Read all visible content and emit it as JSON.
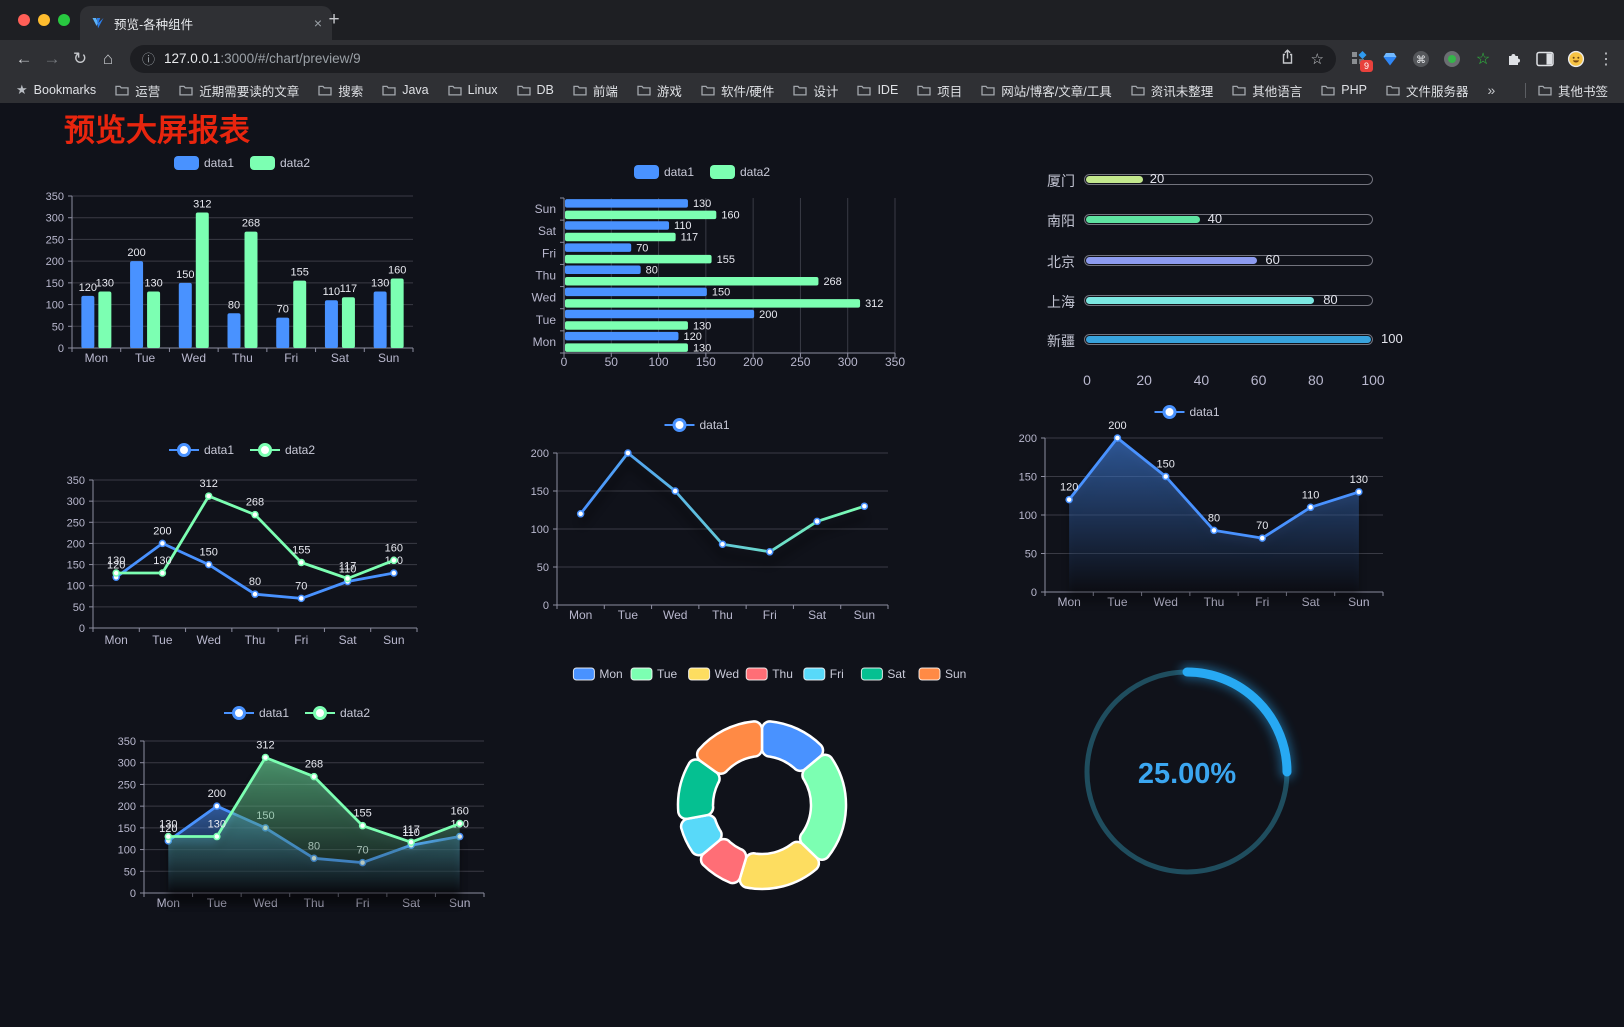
{
  "browser": {
    "tab_title": "预览-各种组件",
    "close_icon": "×",
    "new_tab_icon": "+",
    "url_host": "127.0.0.1",
    "url_path": ":3000/#/chart/preview/9",
    "extension_badge": "9",
    "bookmarks_label": "Bookmarks",
    "bookmarks": [
      "运营",
      "近期需要读的文章",
      "搜索",
      "Java",
      "Linux",
      "DB",
      "前端",
      "游戏",
      "软件/硬件",
      "设计",
      "IDE",
      "项目",
      "网站/博客/文章/工具",
      "资讯未整理",
      "其他语言",
      "PHP",
      "文件服务器"
    ],
    "bookmarks_overflow": "»",
    "other_bookmarks": "其他书签"
  },
  "page": {
    "title": "预览大屏报表",
    "title_color": "#e8250e",
    "background": "#10121a"
  },
  "theme": {
    "axis_label": "#b9b8ce",
    "grid_line": "#3a3b45",
    "axis_line": "#8d8ea0",
    "value_label": "#e8e9f0",
    "legend_text": "#c9cad8"
  },
  "chart_data": [
    {
      "id": "bar-grouped",
      "type": "bar",
      "legend_position": "top",
      "grid": true,
      "categories": [
        "Mon",
        "Tue",
        "Wed",
        "Thu",
        "Fri",
        "Sat",
        "Sun"
      ],
      "series": [
        {
          "name": "data1",
          "color": "#4992ff",
          "values": [
            120,
            200,
            150,
            80,
            70,
            110,
            130
          ]
        },
        {
          "name": "data2",
          "color": "#7cffb2",
          "values": [
            130,
            130,
            312,
            268,
            155,
            117,
            160
          ]
        }
      ],
      "ylim": [
        0,
        350
      ],
      "ytick_step": 50
    },
    {
      "id": "bar-horizontal",
      "type": "bar",
      "orientation": "horizontal",
      "legend_position": "top",
      "grid": true,
      "categories": [
        "Mon",
        "Tue",
        "Wed",
        "Thu",
        "Fri",
        "Sat",
        "Sun"
      ],
      "category_axis_order": "bottom-to-top",
      "series": [
        {
          "name": "data1",
          "color": "#4992ff",
          "values": [
            120,
            200,
            150,
            80,
            70,
            110,
            130
          ]
        },
        {
          "name": "data2",
          "color": "#7cffb2",
          "values": [
            130,
            130,
            312,
            268,
            155,
            117,
            160
          ]
        }
      ],
      "xlim": [
        0,
        350
      ],
      "xtick_step": 50
    },
    {
      "id": "progress",
      "type": "bar",
      "variant": "progress-list",
      "items": [
        {
          "label": "厦门",
          "value": 20,
          "color": "#c3e88d"
        },
        {
          "label": "南阳",
          "value": 40,
          "color": "#5fe3a1"
        },
        {
          "label": "北京",
          "value": 60,
          "color": "#8d9bf0"
        },
        {
          "label": "上海",
          "value": 80,
          "color": "#7ce8e2"
        },
        {
          "label": "新疆",
          "value": 100,
          "color": "#38a3dd"
        }
      ],
      "xlim": [
        0,
        100
      ],
      "xticks": [
        0,
        20,
        40,
        60,
        80,
        100
      ]
    },
    {
      "id": "line-two",
      "type": "line",
      "legend_position": "top",
      "grid": true,
      "shadow": false,
      "categories": [
        "Mon",
        "Tue",
        "Wed",
        "Thu",
        "Fri",
        "Sat",
        "Sun"
      ],
      "series": [
        {
          "name": "data1",
          "color": "#4992ff",
          "values": [
            120,
            200,
            150,
            80,
            70,
            110,
            130
          ]
        },
        {
          "name": "data2",
          "color": "#7cffb2",
          "values": [
            130,
            130,
            312,
            268,
            155,
            117,
            160
          ]
        }
      ],
      "ylim": [
        0,
        350
      ],
      "ytick_step": 50
    },
    {
      "id": "line-gradient",
      "type": "line",
      "legend_position": "top",
      "grid": true,
      "shadow": true,
      "categories": [
        "Mon",
        "Tue",
        "Wed",
        "Thu",
        "Fri",
        "Sat",
        "Sun"
      ],
      "series": [
        {
          "name": "data1",
          "color": "#4992ff",
          "line_gradient": [
            "#4992ff",
            "#7cffb2"
          ],
          "values": [
            120,
            200,
            150,
            80,
            70,
            110,
            130
          ],
          "show_labels": false
        }
      ],
      "ylim": [
        0,
        200
      ],
      "ytick_step": 50
    },
    {
      "id": "area-single",
      "type": "area",
      "legend_position": "top",
      "grid": true,
      "shadow": true,
      "categories": [
        "Mon",
        "Tue",
        "Wed",
        "Thu",
        "Fri",
        "Sat",
        "Sun"
      ],
      "series": [
        {
          "name": "data1",
          "color": "#4992ff",
          "values": [
            120,
            200,
            150,
            80,
            70,
            110,
            130
          ]
        }
      ],
      "ylim": [
        0,
        200
      ],
      "ytick_step": 50
    },
    {
      "id": "area-two",
      "type": "area",
      "legend_position": "top",
      "grid": true,
      "shadow": true,
      "categories": [
        "Mon",
        "Tue",
        "Wed",
        "Thu",
        "Fri",
        "Sat",
        "Sun"
      ],
      "series": [
        {
          "name": "data1",
          "color": "#4992ff",
          "values": [
            120,
            200,
            150,
            80,
            70,
            110,
            130
          ]
        },
        {
          "name": "data2",
          "color": "#7cffb2",
          "values": [
            130,
            130,
            312,
            268,
            155,
            117,
            160
          ]
        }
      ],
      "ylim": [
        0,
        350
      ],
      "ytick_step": 50
    },
    {
      "id": "donut",
      "type": "pie",
      "legend_position": "top",
      "inner_radius_ratio": 0.58,
      "border_color": "#ffffff",
      "labels": [
        "Mon",
        "Tue",
        "Wed",
        "Thu",
        "Fri",
        "Sat",
        "Sun"
      ],
      "values": [
        120,
        200,
        150,
        80,
        70,
        110,
        130
      ],
      "colors": [
        "#4992ff",
        "#7cffb2",
        "#fddd60",
        "#ff6e76",
        "#58d9f9",
        "#05c091",
        "#ff8a45"
      ]
    },
    {
      "id": "gauge",
      "type": "gauge",
      "percent": 25,
      "label": "25.00%",
      "color": "#27a9f3",
      "track_color": "#1f4d5e",
      "text_color": "#3ba6f0"
    }
  ]
}
